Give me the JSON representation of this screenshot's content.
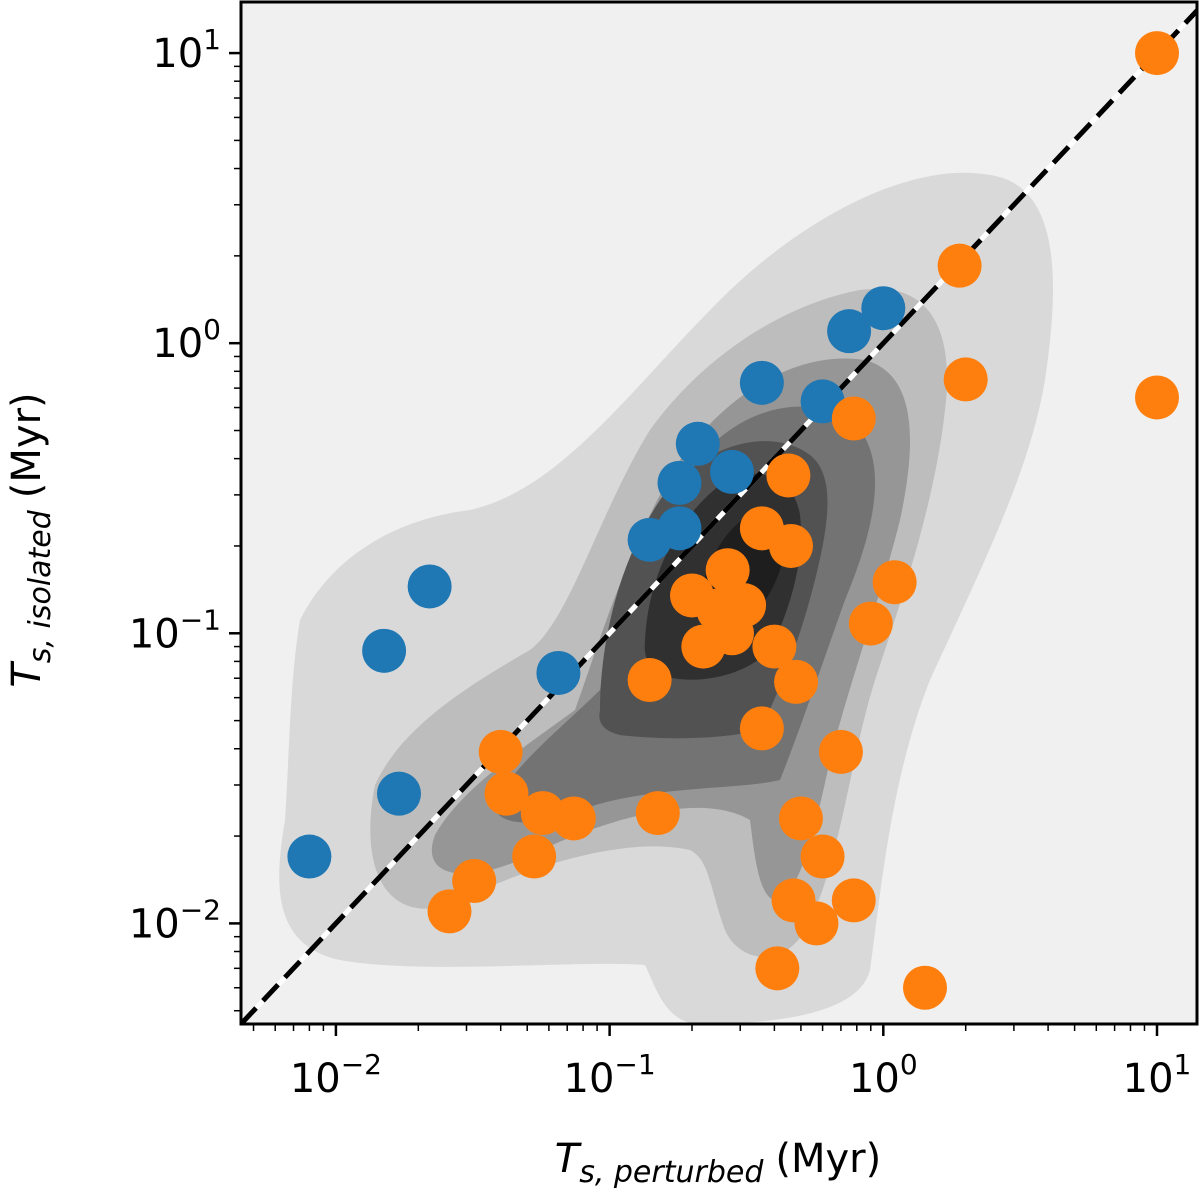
{
  "chart_data": {
    "type": "scatter",
    "xscale": "log",
    "yscale": "log",
    "xlim": [
      0.0045,
      14
    ],
    "ylim": [
      0.0045,
      15
    ],
    "xlabel": {
      "symbol": "T",
      "sub": "s, perturbed",
      "unit": "(Myr)"
    },
    "ylabel": {
      "symbol": "T",
      "sub": "s, isolated",
      "unit": "(Myr)"
    },
    "xticks": [
      {
        "value": 0.01,
        "base": "10",
        "exp": "−2"
      },
      {
        "value": 0.1,
        "base": "10",
        "exp": "−1"
      },
      {
        "value": 1,
        "base": "10",
        "exp": "0"
      },
      {
        "value": 10,
        "base": "10",
        "exp": "1"
      }
    ],
    "yticks": [
      {
        "value": 0.01,
        "base": "10",
        "exp": "−2"
      },
      {
        "value": 0.1,
        "base": "10",
        "exp": "−1"
      },
      {
        "value": 1,
        "base": "10",
        "exp": "0"
      },
      {
        "value": 10,
        "base": "10",
        "exp": "1"
      }
    ],
    "reference_line": {
      "type": "y=x",
      "style": "dashed",
      "color": "#000000",
      "inner_color": "#ffffff"
    },
    "density_contours": {
      "colors": [
        "#f0f0f0",
        "#d9d9d9",
        "#bdbdbd",
        "#969696",
        "#737373",
        "#525252",
        "#303030"
      ]
    },
    "series": [
      {
        "name": "blue",
        "color": "#1f77b4",
        "points": [
          {
            "x": 0.008,
            "y": 0.017
          },
          {
            "x": 0.015,
            "y": 0.087
          },
          {
            "x": 0.017,
            "y": 0.028
          },
          {
            "x": 0.022,
            "y": 0.145
          },
          {
            "x": 0.065,
            "y": 0.073
          },
          {
            "x": 0.14,
            "y": 0.21
          },
          {
            "x": 0.18,
            "y": 0.23
          },
          {
            "x": 0.18,
            "y": 0.33
          },
          {
            "x": 0.21,
            "y": 0.45
          },
          {
            "x": 0.28,
            "y": 0.36
          },
          {
            "x": 0.36,
            "y": 0.73
          },
          {
            "x": 0.6,
            "y": 0.63
          },
          {
            "x": 0.75,
            "y": 1.1
          },
          {
            "x": 1.0,
            "y": 1.32
          }
        ]
      },
      {
        "name": "orange",
        "color": "#ff7f0e",
        "points": [
          {
            "x": 0.026,
            "y": 0.011
          },
          {
            "x": 0.032,
            "y": 0.014
          },
          {
            "x": 0.04,
            "y": 0.039
          },
          {
            "x": 0.042,
            "y": 0.028
          },
          {
            "x": 0.053,
            "y": 0.017
          },
          {
            "x": 0.057,
            "y": 0.024
          },
          {
            "x": 0.074,
            "y": 0.023
          },
          {
            "x": 0.14,
            "y": 0.069
          },
          {
            "x": 0.15,
            "y": 0.024
          },
          {
            "x": 0.2,
            "y": 0.135
          },
          {
            "x": 0.22,
            "y": 0.09
          },
          {
            "x": 0.25,
            "y": 0.12
          },
          {
            "x": 0.27,
            "y": 0.165
          },
          {
            "x": 0.28,
            "y": 0.1
          },
          {
            "x": 0.31,
            "y": 0.125
          },
          {
            "x": 0.36,
            "y": 0.23
          },
          {
            "x": 0.36,
            "y": 0.047
          },
          {
            "x": 0.4,
            "y": 0.09
          },
          {
            "x": 0.41,
            "y": 0.007
          },
          {
            "x": 0.45,
            "y": 0.35
          },
          {
            "x": 0.46,
            "y": 0.2
          },
          {
            "x": 0.47,
            "y": 0.012
          },
          {
            "x": 0.48,
            "y": 0.068
          },
          {
            "x": 0.5,
            "y": 0.023
          },
          {
            "x": 0.57,
            "y": 0.01
          },
          {
            "x": 0.6,
            "y": 0.017
          },
          {
            "x": 0.7,
            "y": 0.039
          },
          {
            "x": 0.78,
            "y": 0.55
          },
          {
            "x": 0.78,
            "y": 0.012
          },
          {
            "x": 0.9,
            "y": 0.108
          },
          {
            "x": 1.1,
            "y": 0.15
          },
          {
            "x": 1.42,
            "y": 0.006
          },
          {
            "x": 1.9,
            "y": 1.85
          },
          {
            "x": 2.0,
            "y": 0.75
          },
          {
            "x": 10.0,
            "y": 10.0
          },
          {
            "x": 10.0,
            "y": 0.65
          }
        ]
      }
    ]
  }
}
